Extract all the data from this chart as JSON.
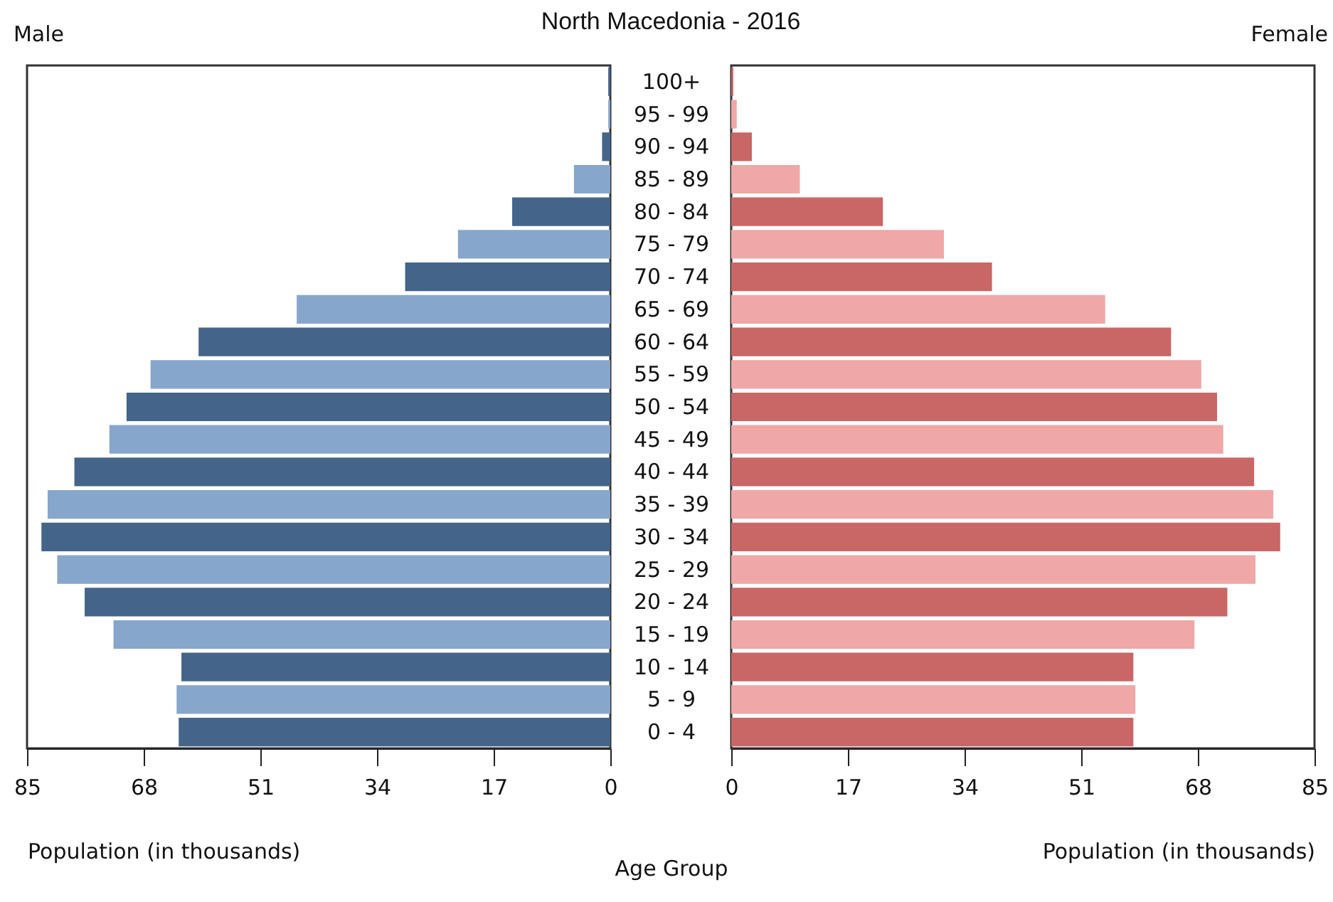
{
  "chart_data": [
    {
      "type": "bar",
      "orientation": "horizontal",
      "title": "North Macedonia - 2016",
      "subtitle": "Male",
      "xlabel": "Population (in thousands)",
      "ylabel": "Age Group",
      "categories": [
        "100+",
        "95 - 99",
        "90 - 94",
        "85 - 89",
        "80 - 84",
        "75 - 79",
        "70 - 74",
        "65 - 69",
        "60 - 64",
        "55 - 59",
        "50 - 54",
        "45 - 49",
        "40 - 44",
        "35 - 39",
        "30 - 34",
        "25 - 29",
        "20 - 24",
        "15 - 19",
        "10 - 14",
        "5 - 9",
        "0 - 4"
      ],
      "values": [
        0.3,
        0.3,
        1.2,
        5.3,
        14.3,
        22.2,
        29.9,
        45.7,
        60.0,
        67.0,
        70.5,
        73.0,
        78.1,
        82.0,
        82.9,
        80.6,
        76.6,
        72.4,
        62.5,
        63.2,
        62.9
      ],
      "colors": [
        "#44648a",
        "#87a6cc",
        "#44648a",
        "#87a6cc",
        "#44648a",
        "#87a6cc",
        "#44648a",
        "#87a6cc",
        "#44648a",
        "#87a6cc",
        "#44648a",
        "#87a6cc",
        "#44648a",
        "#87a6cc",
        "#44648a",
        "#87a6cc",
        "#44648a",
        "#87a6cc",
        "#44648a",
        "#87a6cc",
        "#44648a"
      ],
      "xlim": [
        85,
        0
      ],
      "xticks": [
        85,
        68,
        51,
        34,
        17,
        0
      ],
      "grid": false,
      "legend": false
    },
    {
      "type": "bar",
      "orientation": "horizontal",
      "subtitle": "Female",
      "xlabel": "Population (in thousands)",
      "categories": [
        null,
        null,
        null,
        null,
        null,
        null,
        null,
        null,
        null,
        null,
        null,
        null,
        null,
        null,
        null,
        null,
        null,
        null,
        null,
        null,
        null
      ],
      "values": [
        0.3,
        0.8,
        3.0,
        10.0,
        22.1,
        31.0,
        38.0,
        54.5,
        64.1,
        68.5,
        70.8,
        71.7,
        76.2,
        79.0,
        80.0,
        76.4,
        72.3,
        67.5,
        58.6,
        58.9,
        58.6
      ],
      "colors": [
        "#c96666",
        "#efa7a7",
        "#c96666",
        "#efa7a7",
        "#c96666",
        "#efa7a7",
        "#c96666",
        "#efa7a7",
        "#c96666",
        "#efa7a7",
        "#c96666",
        "#efa7a7",
        "#c96666",
        "#efa7a7",
        "#c96666",
        "#efa7a7",
        "#c96666",
        "#efa7a7",
        "#c96666",
        "#efa7a7",
        "#c96666"
      ],
      "xlim": [
        0,
        85
      ],
      "xticks": [
        0,
        17,
        34,
        51,
        68,
        85
      ],
      "grid": false,
      "legend": false,
      "tick_labels": "x"
    }
  ]
}
